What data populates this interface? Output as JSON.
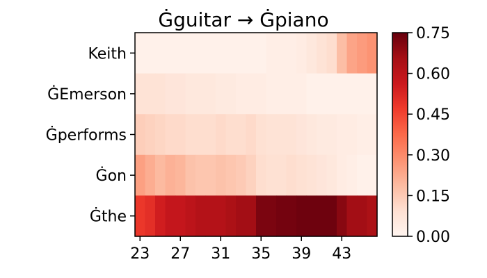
{
  "chart_data": {
    "type": "heatmap",
    "title": "Ġguitar → Ġpiano",
    "xlabel": "",
    "ylabel": "",
    "x_values": [
      23,
      24,
      25,
      26,
      27,
      28,
      29,
      30,
      31,
      32,
      33,
      34,
      35,
      36,
      37,
      38,
      39,
      40,
      41,
      42,
      43,
      44,
      45,
      46
    ],
    "x_tick_labels": [
      "23",
      "27",
      "31",
      "35",
      "39",
      "43"
    ],
    "y_categories": [
      "Keith",
      "ĠEmerson",
      "Ġperforms",
      "Ġon",
      "Ġthe"
    ],
    "values": [
      [
        0.02,
        0.02,
        0.02,
        0.02,
        0.02,
        0.02,
        0.02,
        0.02,
        0.02,
        0.02,
        0.02,
        0.02,
        0.02,
        0.03,
        0.03,
        0.03,
        0.04,
        0.06,
        0.08,
        0.1,
        0.18,
        0.24,
        0.26,
        0.28
      ],
      [
        0.08,
        0.08,
        0.08,
        0.07,
        0.07,
        0.06,
        0.06,
        0.06,
        0.05,
        0.05,
        0.04,
        0.04,
        0.04,
        0.03,
        0.03,
        0.03,
        0.03,
        0.02,
        0.02,
        0.02,
        0.02,
        0.02,
        0.02,
        0.02
      ],
      [
        0.14,
        0.13,
        0.12,
        0.11,
        0.11,
        0.1,
        0.1,
        0.1,
        0.11,
        0.1,
        0.1,
        0.11,
        0.09,
        0.08,
        0.08,
        0.08,
        0.07,
        0.06,
        0.05,
        0.05,
        0.04,
        0.04,
        0.03,
        0.03
      ],
      [
        0.25,
        0.22,
        0.19,
        0.21,
        0.2,
        0.17,
        0.16,
        0.16,
        0.17,
        0.16,
        0.15,
        0.13,
        0.1,
        0.09,
        0.09,
        0.1,
        0.09,
        0.08,
        0.07,
        0.06,
        0.04,
        0.03,
        0.02,
        0.02
      ],
      [
        0.48,
        0.5,
        0.55,
        0.58,
        0.58,
        0.6,
        0.62,
        0.62,
        0.62,
        0.64,
        0.66,
        0.66,
        0.72,
        0.72,
        0.73,
        0.73,
        0.74,
        0.74,
        0.74,
        0.74,
        0.7,
        0.66,
        0.66,
        0.64
      ]
    ],
    "colorbar": {
      "colormap": "Reds",
      "min": 0.0,
      "max": 0.75,
      "tick_values": [
        0.0,
        0.15,
        0.3,
        0.45,
        0.6,
        0.75
      ],
      "tick_labels": [
        "0.00",
        "0.15",
        "0.30",
        "0.45",
        "0.60",
        "0.75"
      ]
    },
    "grid": false
  }
}
